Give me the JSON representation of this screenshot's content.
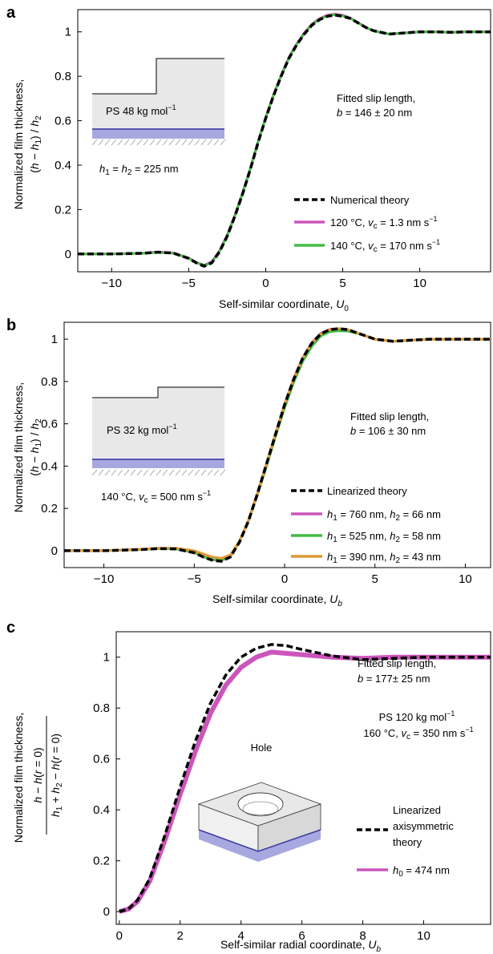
{
  "chart_data": [
    {
      "panel": "a",
      "type": "line",
      "ylabel1": "Normalized film thickness,",
      "ylabel2": "(h − h1) / h2",
      "xlabel": "Self-similar coordinate, U0",
      "xlim": [
        -12.2,
        14.6
      ],
      "ylim": [
        -0.08,
        1.1
      ],
      "xticks": [
        "−10",
        "−5",
        "0",
        "5",
        "10"
      ],
      "xtick_values": [
        -10,
        -5,
        0,
        5,
        10
      ],
      "yticks": [
        "0",
        "0.2",
        "0.4",
        "0.6",
        "0.8",
        "1"
      ],
      "ytick_values": [
        0,
        0.2,
        0.4,
        0.6,
        0.8,
        1
      ],
      "inset_label": "PS 48 kg mol−1",
      "inset_condition": "h1 = h2 = 225 nm",
      "annotation1": "Fitted slip length,",
      "annotation2": "b = 146 ± 20 nm",
      "series": [
        {
          "name": "Numerical theory",
          "style": "dashed",
          "color": "#000000",
          "x": [
            -12.2,
            -10,
            -8,
            -7,
            -6,
            -5,
            -4.5,
            -4,
            -3.5,
            -3,
            -2.5,
            -2,
            -1.5,
            -1,
            -0.5,
            0,
            0.5,
            1,
            1.5,
            2,
            2.5,
            3,
            3.5,
            4,
            4.5,
            5,
            5.5,
            6,
            6.5,
            7,
            8,
            9,
            10,
            11,
            12,
            13,
            14.6
          ],
          "y": [
            0,
            0,
            0.003,
            0.008,
            0.004,
            -0.02,
            -0.04,
            -0.055,
            -0.04,
            0.01,
            0.08,
            0.17,
            0.27,
            0.38,
            0.5,
            0.61,
            0.71,
            0.8,
            0.88,
            0.94,
            0.99,
            1.03,
            1.055,
            1.07,
            1.075,
            1.07,
            1.06,
            1.04,
            1.02,
            1.005,
            0.99,
            0.995,
            1.0,
            1.0,
            0.998,
            1.0,
            1.0
          ]
        },
        {
          "name": "120 °C, vc = 1.3 nm s−1",
          "style": "solid",
          "color": "#cc55bb",
          "x": [
            -12.2,
            -10,
            -8,
            -7,
            -6,
            -5,
            -4.5,
            -4,
            -3.5,
            -3,
            -2.5,
            -2,
            -1.5,
            -1,
            -0.5,
            0,
            0.5,
            1,
            1.5,
            2,
            2.5,
            3,
            3.5,
            4,
            4.5,
            5,
            5.5,
            6,
            6.5,
            7,
            8,
            9,
            10,
            11,
            12,
            13,
            14.6
          ],
          "y": [
            0,
            0,
            0.004,
            0.009,
            0.005,
            -0.018,
            -0.038,
            -0.05,
            -0.035,
            0.015,
            0.085,
            0.175,
            0.275,
            0.385,
            0.505,
            0.615,
            0.715,
            0.805,
            0.885,
            0.945,
            0.995,
            1.035,
            1.06,
            1.075,
            1.08,
            1.075,
            1.062,
            1.042,
            1.02,
            1.005,
            0.99,
            0.995,
            1.0,
            1.0,
            0.998,
            1.0,
            1.0
          ]
        },
        {
          "name": "140 °C, vc = 170 nm s−1",
          "style": "solid",
          "color": "#44bb44",
          "x": [
            -12.2,
            -10,
            -8,
            -7,
            -6,
            -5,
            -4.5,
            -4,
            -3.5,
            -3,
            -2.5,
            -2,
            -1.5,
            -1,
            -0.5,
            0,
            0.5,
            1,
            1.5,
            2,
            2.5,
            3,
            3.5,
            4,
            4.5,
            5,
            5.5,
            6,
            6.5,
            7,
            8,
            9,
            10,
            11,
            12,
            13,
            14.6
          ],
          "y": [
            0,
            0,
            0.003,
            0.007,
            0.004,
            -0.019,
            -0.039,
            -0.052,
            -0.038,
            0.012,
            0.082,
            0.172,
            0.272,
            0.382,
            0.502,
            0.612,
            0.712,
            0.802,
            0.882,
            0.942,
            0.992,
            1.032,
            1.057,
            1.072,
            1.077,
            1.072,
            1.061,
            1.041,
            1.02,
            1.004,
            0.99,
            0.995,
            1.0,
            1.0,
            0.998,
            1.0,
            1.0
          ]
        }
      ]
    },
    {
      "panel": "b",
      "type": "line",
      "ylabel1": "Normalized film thickness,",
      "ylabel2": "(h − h1) / h2",
      "xlabel": "Self-similar coordinate, Ub",
      "xlim": [
        -12.2,
        11.4
      ],
      "ylim": [
        -0.08,
        1.08
      ],
      "xticks": [
        "−10",
        "−5",
        "0",
        "5",
        "10"
      ],
      "xtick_values": [
        -10,
        -5,
        0,
        5,
        10
      ],
      "yticks": [
        "0",
        "0.2",
        "0.4",
        "0.6",
        "0.8",
        "1"
      ],
      "ytick_values": [
        0,
        0.2,
        0.4,
        0.6,
        0.8,
        1
      ],
      "inset_label": "PS 32 kg mol−1",
      "inset_condition": "140 °C, vc = 500 nm s−1",
      "annotation1": "Fitted slip length,",
      "annotation2": "b = 106 ± 30 nm",
      "series": [
        {
          "name": "Linearized theory",
          "style": "dashed",
          "color": "#000000",
          "x": [
            -12.2,
            -10,
            -8,
            -7,
            -6,
            -5,
            -4.5,
            -4,
            -3.5,
            -3,
            -2.5,
            -2,
            -1.5,
            -1,
            -0.5,
            0,
            0.5,
            1,
            1.5,
            2,
            2.5,
            3,
            3.5,
            4,
            4.5,
            5,
            6,
            7,
            8,
            9,
            10,
            11.4
          ],
          "y": [
            0,
            0,
            0.005,
            0.01,
            0.008,
            -0.01,
            -0.03,
            -0.045,
            -0.05,
            -0.03,
            0.04,
            0.14,
            0.27,
            0.41,
            0.55,
            0.69,
            0.81,
            0.91,
            0.98,
            1.025,
            1.045,
            1.05,
            1.045,
            1.03,
            1.015,
            1.0,
            0.99,
            0.995,
            1.0,
            1.0,
            1.0,
            1.0
          ]
        },
        {
          "name": "h1 = 760 nm, h2 = 66 nm",
          "style": "solid",
          "color": "#cc55bb",
          "x": [
            -12.2,
            -10,
            -8,
            -7,
            -6,
            -5,
            -4.5,
            -4,
            -3.5,
            -3,
            -2.5,
            -2,
            -1.5,
            -1,
            -0.5,
            0,
            0.5,
            1,
            1.5,
            2,
            2.5,
            3,
            3.5,
            4,
            4.5,
            5,
            6,
            7,
            8,
            9,
            10,
            11.4
          ],
          "y": [
            0,
            0,
            0.006,
            0.011,
            0.009,
            -0.008,
            -0.028,
            -0.042,
            -0.047,
            -0.027,
            0.043,
            0.143,
            0.273,
            0.413,
            0.553,
            0.693,
            0.813,
            0.913,
            0.983,
            1.028,
            1.047,
            1.05,
            1.044,
            1.03,
            1.015,
            1.0,
            0.99,
            0.995,
            1.0,
            1.0,
            1.0,
            1.0
          ]
        },
        {
          "name": "h1 = 525 nm, h2 = 58 nm",
          "style": "solid",
          "color": "#44bb44",
          "x": [
            -12.2,
            -10,
            -8,
            -7,
            -6,
            -5,
            -4.5,
            -4,
            -3.5,
            -3,
            -2.5,
            -2,
            -1.5,
            -1,
            -0.5,
            0,
            0.5,
            1,
            1.5,
            2,
            2.5,
            3,
            3.5,
            4,
            4.5,
            5,
            6,
            7,
            8,
            9,
            10,
            11.4
          ],
          "y": [
            0,
            0,
            0.005,
            0.01,
            0.008,
            -0.009,
            -0.029,
            -0.043,
            -0.046,
            -0.025,
            0.045,
            0.14,
            0.265,
            0.4,
            0.54,
            0.675,
            0.795,
            0.895,
            0.965,
            1.015,
            1.035,
            1.04,
            1.038,
            1.028,
            1.015,
            1.0,
            0.99,
            0.995,
            1.0,
            1.0,
            1.0,
            1.0
          ]
        },
        {
          "name": "h1 = 390 nm, h2 = 43 nm",
          "style": "solid",
          "color": "#dd9933",
          "x": [
            -12.2,
            -10,
            -8,
            -7,
            -6,
            -5,
            -4.5,
            -4,
            -3.5,
            -3,
            -2.5,
            -2,
            -1.5,
            -1,
            -0.5,
            0,
            0.5,
            1,
            1.5,
            2,
            2.5,
            3,
            3.5,
            4,
            4.5,
            5,
            6,
            7,
            8,
            9,
            10,
            11.4
          ],
          "y": [
            0,
            0,
            0.006,
            0.012,
            0.012,
            0.0,
            -0.015,
            -0.03,
            -0.036,
            -0.02,
            0.045,
            0.14,
            0.27,
            0.41,
            0.55,
            0.69,
            0.81,
            0.91,
            0.98,
            1.025,
            1.045,
            1.05,
            1.045,
            1.03,
            1.015,
            1.0,
            0.99,
            0.995,
            1.0,
            1.0,
            1.0,
            1.0
          ]
        }
      ]
    },
    {
      "panel": "c",
      "type": "line",
      "ylabel1": "Normalized film thickness,",
      "ylabel_num": "h − h(r = 0)",
      "ylabel_den": "h1 + h2 − h(r = 0)",
      "xlabel": "Self-similar radial coordinate, Ub",
      "xlim": [
        -0.1,
        12.2
      ],
      "ylim": [
        -0.05,
        1.1
      ],
      "xticks": [
        "0",
        "2",
        "4",
        "6",
        "8",
        "10"
      ],
      "xtick_values": [
        0,
        2,
        4,
        6,
        8,
        10
      ],
      "yticks": [
        "0",
        "0.2",
        "0.4",
        "0.6",
        "0.8",
        "1"
      ],
      "ytick_values": [
        0,
        0.2,
        0.4,
        0.6,
        0.8,
        1
      ],
      "inset_label": "Hole",
      "annotation1": "Fitted slip length,",
      "annotation2": "b = 177 ± 25 nm",
      "annotation3": "PS 120 kg mol−1",
      "annotation4": "160 °C, vc = 350 nm s−1",
      "series": [
        {
          "name": "h0 = 474 nm",
          "style": "solid",
          "color": "#cc55bb",
          "x": [
            0,
            0.3,
            0.6,
            1,
            1.5,
            2,
            2.5,
            3,
            3.5,
            4,
            4.5,
            5,
            5.5,
            6,
            7,
            8,
            9,
            10,
            11,
            12.2
          ],
          "y": [
            0,
            0.01,
            0.04,
            0.12,
            0.28,
            0.46,
            0.63,
            0.78,
            0.89,
            0.96,
            1.0,
            1.02,
            1.015,
            1.01,
            1.0,
            0.995,
            1.0,
            1.0,
            1.0,
            1.0
          ]
        },
        {
          "name": "Linearized axisymmetric theory",
          "style": "dashed",
          "color": "#000000",
          "x": [
            0,
            0.3,
            0.6,
            1,
            1.5,
            2,
            2.5,
            3,
            3.5,
            4,
            4.5,
            5,
            5.5,
            6,
            7,
            8,
            9,
            10,
            11,
            12.2
          ],
          "y": [
            0,
            0.01,
            0.045,
            0.13,
            0.3,
            0.49,
            0.67,
            0.82,
            0.93,
            1.0,
            1.035,
            1.05,
            1.045,
            1.03,
            1.005,
            0.99,
            0.995,
            1.0,
            1.0,
            1.0
          ]
        }
      ],
      "legend_theory_lines": [
        "Linearized",
        "axisymmetric",
        "theory"
      ]
    }
  ]
}
